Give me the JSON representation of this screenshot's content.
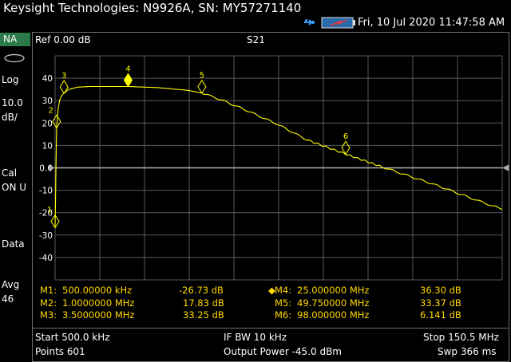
{
  "title": "Keysight Technologies: N9926A, SN: MY57271140",
  "datetime": "Fri, 10 Jul 2020 11:47:58 AM",
  "sidebar": {
    "mode": "NA",
    "format": "Log",
    "scale_value": "10.0",
    "scale_unit": "dB/",
    "cal_label": "Cal",
    "cal_state": "ON U",
    "data_label": "Data",
    "avg_label": "Avg",
    "avg_value": "46"
  },
  "trace_header": {
    "ref": "Ref 0.00 dB",
    "measurement": "S21"
  },
  "markers": [
    {
      "name": "M1:",
      "freq": "500.00000 kHz",
      "value": "-26.73 dB"
    },
    {
      "name": "M2:",
      "freq": "1.0000000 MHz",
      "value": "17.83 dB"
    },
    {
      "name": "M3:",
      "freq": "3.5000000 MHz",
      "value": "33.25 dB"
    },
    {
      "name": "M4:",
      "freq": "25.000000 MHz",
      "value": "36.30 dB",
      "active": true
    },
    {
      "name": "M5:",
      "freq": "49.750000 MHz",
      "value": "33.37 dB"
    },
    {
      "name": "M6:",
      "freq": "98.000000 MHz",
      "value": "6.141 dB"
    }
  ],
  "active_marker_symbol": "◆",
  "footer": {
    "start": "Start 500.0 kHz",
    "points": "Points 601",
    "ifbw": "IF BW 10 kHz",
    "power": "Output Power -45.0 dBm",
    "stop": "Stop 150.5 MHz",
    "sweep": "Swp 366 ms"
  },
  "colors": {
    "trace": "#ffff00",
    "marker_text": "#ffd700",
    "grid": "#5a5a5a",
    "mode_bg": "#2a7a4a"
  },
  "chart_data": {
    "type": "line",
    "xlabel": "",
    "ylabel": "",
    "xlim": [
      0.5,
      150.5
    ],
    "ylim": [
      -50,
      50
    ],
    "y_ticks": [
      "40",
      "30",
      "20",
      "10",
      "0.0",
      "-10",
      "-20",
      "-30",
      "-40"
    ],
    "series": [
      {
        "x": [
          0.5,
          0.75,
          1.0,
          1.5,
          2.0,
          2.5,
          3.0,
          3.5,
          5,
          8,
          12,
          18,
          25,
          35,
          45,
          49.75,
          55,
          65,
          75,
          85,
          98,
          110,
          120,
          130,
          140,
          150.5
        ],
        "y": [
          -26.73,
          -5,
          17.83,
          26,
          30,
          31.8,
          32.8,
          33.25,
          35,
          36.0,
          36.3,
          36.3,
          36.3,
          35.8,
          34.6,
          33.37,
          31.0,
          25.5,
          19.5,
          12.5,
          6.14,
          0.5,
          -4.0,
          -8.5,
          -13.5,
          -18.5
        ]
      }
    ],
    "markers": [
      {
        "label": "1",
        "x": 0.5,
        "y": -26.73
      },
      {
        "label": "2",
        "x": 1.0,
        "y": 17.83
      },
      {
        "label": "3",
        "x": 3.5,
        "y": 33.25
      },
      {
        "label": "4",
        "x": 25.0,
        "y": 36.3
      },
      {
        "label": "5",
        "x": 49.75,
        "y": 33.37
      },
      {
        "label": "6",
        "x": 98.0,
        "y": 6.141
      }
    ],
    "reference_level": 0.0
  }
}
